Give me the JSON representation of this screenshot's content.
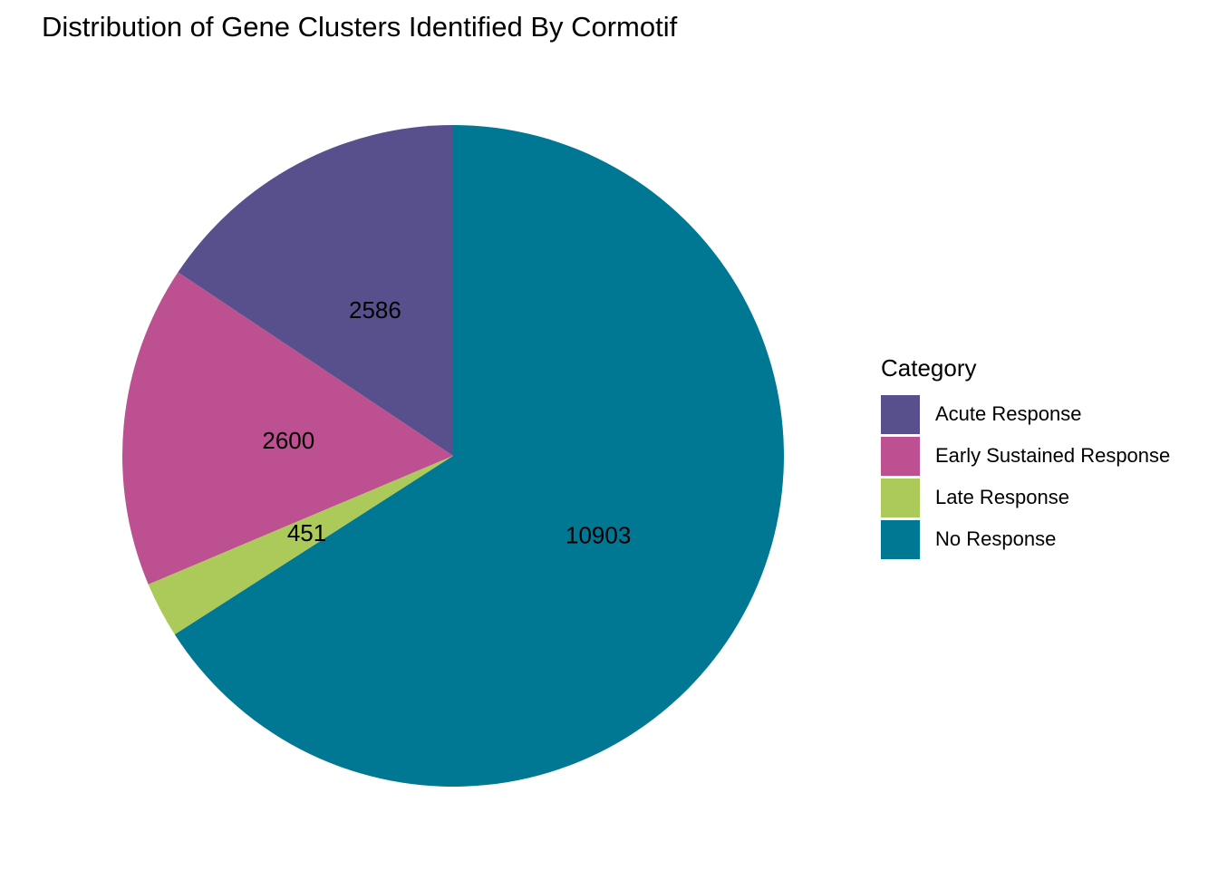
{
  "chart_data": {
    "type": "pie",
    "title": "Distribution of Gene Clusters Identified By Cormotif",
    "categories": [
      "Acute Response",
      "Early Sustained Response",
      "Late Response",
      "No Response"
    ],
    "values": [
      2586,
      2600,
      451,
      10903
    ],
    "colors": [
      "#58508d",
      "#bc5090",
      "#acca5a",
      "#007894"
    ],
    "legend": {
      "title": "Category",
      "position": "right"
    },
    "direction": "counterclockwise",
    "start": "top"
  }
}
